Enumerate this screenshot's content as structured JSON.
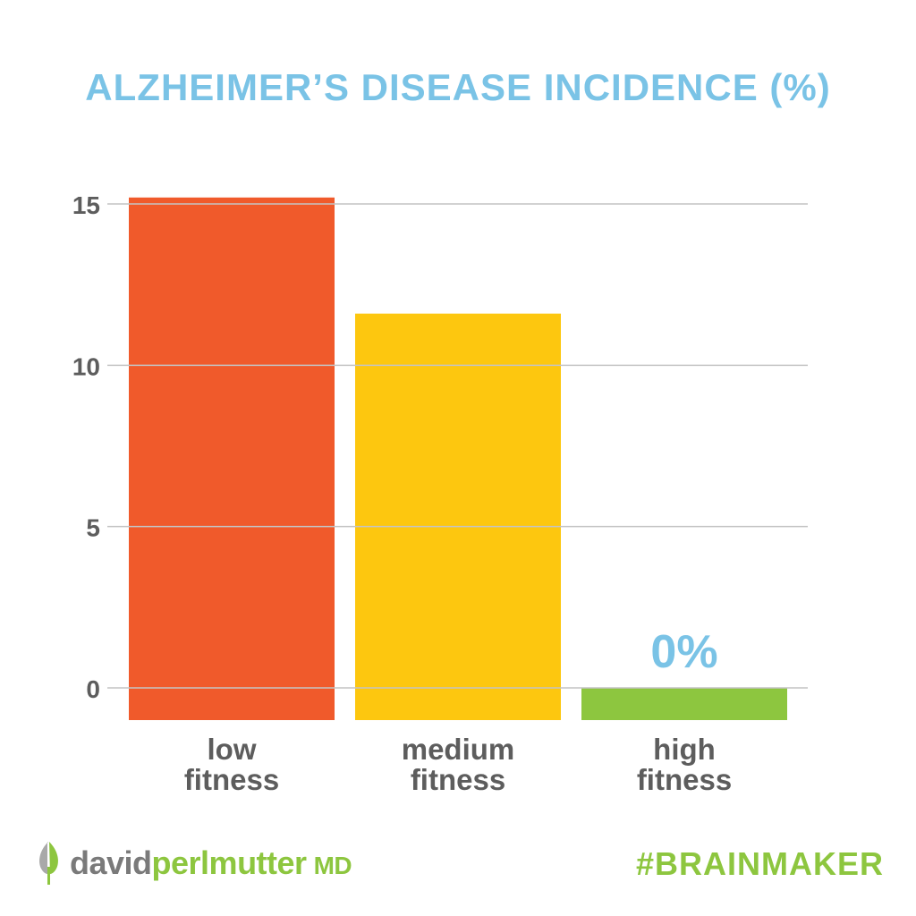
{
  "colors": {
    "title": "#7ac3e6",
    "axis_text": "#5d5d5d",
    "category_text": "#5d5d5d",
    "gridline": "#c4c4c4",
    "annotation": "#7ac3e6",
    "brand_gray": "#7a7a7a",
    "brand_green": "#8dc63f",
    "hashtag": "#8dc63f"
  },
  "chart_data": {
    "type": "bar",
    "title": "ALZHEIMER’S DISEASE INCIDENCE (%)",
    "categories": [
      {
        "line1": "low",
        "line2": "fitness"
      },
      {
        "line1": "medium",
        "line2": "fitness"
      },
      {
        "line1": "high",
        "line2": "fitness"
      }
    ],
    "values": [
      15.2,
      11.6,
      0
    ],
    "bar_colors": [
      "#f05a2b",
      "#fdc70f",
      "#8dc63f"
    ],
    "ylim": [
      0,
      15
    ],
    "yticks": [
      "0",
      "5",
      "10",
      "15"
    ],
    "grid": true,
    "annotations": [
      {
        "category_index": 2,
        "text": "0%"
      }
    ]
  },
  "branding": {
    "logo": "leaf-icon",
    "name_part1": "david",
    "name_part2": "perlmutter",
    "name_suffix": "MD",
    "hashtag": "#BRAINMAKER"
  }
}
